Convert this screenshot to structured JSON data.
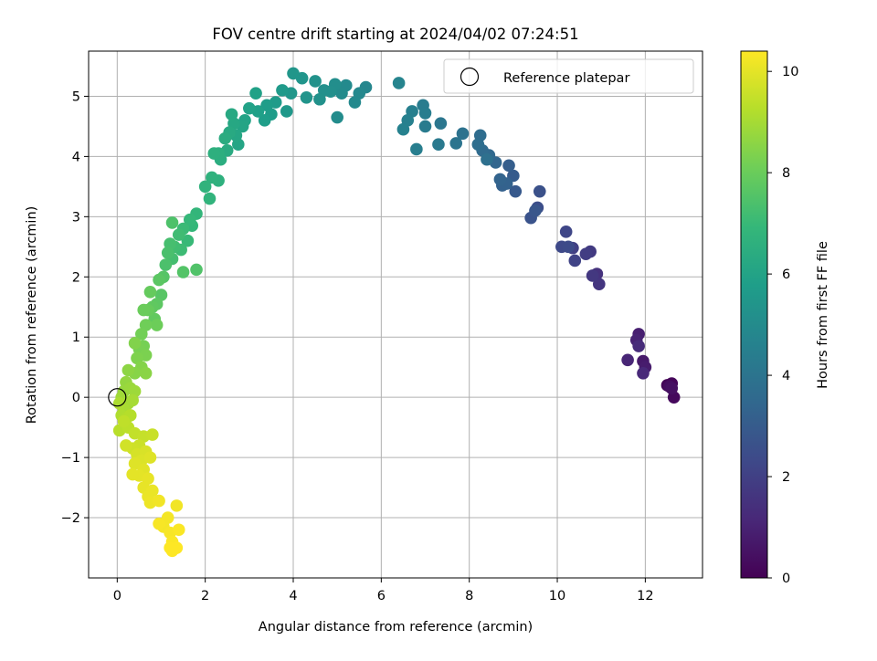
{
  "chart_data": {
    "type": "scatter",
    "title": "FOV centre drift starting at 2024/04/02 07:24:51",
    "xlabel": "Angular distance from reference (arcmin)",
    "ylabel": "Rotation from reference (arcmin)",
    "xlim": [
      -0.65,
      13.3
    ],
    "ylim": [
      -3.0,
      5.75
    ],
    "xticks": [
      0,
      2,
      4,
      6,
      8,
      10,
      12
    ],
    "yticks": [
      -2,
      -1,
      0,
      1,
      2,
      3,
      4,
      5
    ],
    "grid": true,
    "colorbar": {
      "label": "Hours from first FF file",
      "min": 0,
      "max": 10.4,
      "ticks": [
        0,
        2,
        4,
        6,
        8,
        10
      ],
      "colormap": [
        "#440154",
        "#482878",
        "#3e4989",
        "#31688e",
        "#26828e",
        "#1f9e89",
        "#35b779",
        "#6ece58",
        "#b5de2b",
        "#fde725"
      ]
    },
    "legend": {
      "position": "upper right",
      "entries": [
        "Reference platepar"
      ]
    },
    "reference_point": {
      "x": 0,
      "y": 0
    },
    "series": [
      {
        "points": [
          [
            12.5,
            0.2,
            0.1
          ],
          [
            12.6,
            0.23,
            0.15
          ],
          [
            12.65,
            0.0,
            0.25
          ],
          [
            12.55,
            0.18,
            0.35
          ],
          [
            12.6,
            0.15,
            0.45
          ],
          [
            11.95,
            0.6,
            0.7
          ],
          [
            12.0,
            0.5,
            0.8
          ],
          [
            11.85,
            1.05,
            0.9
          ],
          [
            11.8,
            0.95,
            1.0
          ],
          [
            11.6,
            0.62,
            1.1
          ],
          [
            11.95,
            0.4,
            1.2
          ],
          [
            11.85,
            0.85,
            1.3
          ],
          [
            10.9,
            2.05,
            1.5
          ],
          [
            10.95,
            1.88,
            1.6
          ],
          [
            10.8,
            2.02,
            1.7
          ],
          [
            10.75,
            2.42,
            1.8
          ],
          [
            10.65,
            2.38,
            1.9
          ],
          [
            10.35,
            2.48,
            2.0
          ],
          [
            10.4,
            2.27,
            2.1
          ],
          [
            10.2,
            2.75,
            2.2
          ],
          [
            10.1,
            2.5,
            2.3
          ],
          [
            10.25,
            2.5,
            2.4
          ],
          [
            9.55,
            3.15,
            2.5
          ],
          [
            9.6,
            3.42,
            2.6
          ],
          [
            9.4,
            2.98,
            2.7
          ],
          [
            9.5,
            3.1,
            2.8
          ],
          [
            9.05,
            3.42,
            2.9
          ],
          [
            9.0,
            3.68,
            3.0
          ],
          [
            8.9,
            3.85,
            3.1
          ],
          [
            8.75,
            3.52,
            3.2
          ],
          [
            8.85,
            3.55,
            3.25
          ],
          [
            8.7,
            3.62,
            3.3
          ],
          [
            8.6,
            3.9,
            3.4
          ],
          [
            8.45,
            4.02,
            3.5
          ],
          [
            8.3,
            4.1,
            3.6
          ],
          [
            8.25,
            4.35,
            3.7
          ],
          [
            8.2,
            4.2,
            3.75
          ],
          [
            8.4,
            3.95,
            3.8
          ],
          [
            7.85,
            4.38,
            3.9
          ],
          [
            7.7,
            4.22,
            4.0
          ],
          [
            7.35,
            4.55,
            4.1
          ],
          [
            7.3,
            4.2,
            4.2
          ],
          [
            7.0,
            4.5,
            4.3
          ],
          [
            6.95,
            4.85,
            4.35
          ],
          [
            7.0,
            4.72,
            4.4
          ],
          [
            6.8,
            4.12,
            4.45
          ],
          [
            6.7,
            4.75,
            4.5
          ],
          [
            6.6,
            4.6,
            4.55
          ],
          [
            6.5,
            4.45,
            4.6
          ],
          [
            6.4,
            5.22,
            4.7
          ],
          [
            5.65,
            5.15,
            4.8
          ],
          [
            5.5,
            5.05,
            4.85
          ],
          [
            5.4,
            4.9,
            4.9
          ],
          [
            5.2,
            5.18,
            4.95
          ],
          [
            5.1,
            5.05,
            5.0
          ],
          [
            5.0,
            4.65,
            5.05
          ],
          [
            4.95,
            5.2,
            5.1
          ],
          [
            4.85,
            5.08,
            5.15
          ],
          [
            4.7,
            5.1,
            5.2
          ],
          [
            4.6,
            4.95,
            5.25
          ],
          [
            4.5,
            5.25,
            5.3
          ],
          [
            4.3,
            4.98,
            5.35
          ],
          [
            4.2,
            5.3,
            5.4
          ],
          [
            4.0,
            5.38,
            5.45
          ],
          [
            3.95,
            5.05,
            5.5
          ],
          [
            3.85,
            4.75,
            5.55
          ],
          [
            3.75,
            5.1,
            5.6
          ],
          [
            3.6,
            4.9,
            5.65
          ],
          [
            3.5,
            4.7,
            5.7
          ],
          [
            3.4,
            4.85,
            5.75
          ],
          [
            3.35,
            4.6,
            5.8
          ],
          [
            3.2,
            4.75,
            5.85
          ],
          [
            3.15,
            5.05,
            5.9
          ],
          [
            3.0,
            4.8,
            5.95
          ],
          [
            2.9,
            4.6,
            6.0
          ],
          [
            2.85,
            4.5,
            6.05
          ],
          [
            2.75,
            4.2,
            6.1
          ],
          [
            2.7,
            4.35,
            6.15
          ],
          [
            2.65,
            4.55,
            6.2
          ],
          [
            2.6,
            4.7,
            6.25
          ],
          [
            2.55,
            4.4,
            6.3
          ],
          [
            2.5,
            4.1,
            6.35
          ],
          [
            2.45,
            4.3,
            6.4
          ],
          [
            2.35,
            3.95,
            6.45
          ],
          [
            2.3,
            4.05,
            6.5
          ],
          [
            2.2,
            4.05,
            6.55
          ],
          [
            2.3,
            3.6,
            6.6
          ],
          [
            2.15,
            3.65,
            6.65
          ],
          [
            2.0,
            3.5,
            6.7
          ],
          [
            2.1,
            3.3,
            6.75
          ],
          [
            1.8,
            3.05,
            6.85
          ],
          [
            1.7,
            2.85,
            6.9
          ],
          [
            1.65,
            2.95,
            6.95
          ],
          [
            1.6,
            2.6,
            7.0
          ],
          [
            1.5,
            2.8,
            7.05
          ],
          [
            1.45,
            2.45,
            7.1
          ],
          [
            1.4,
            2.7,
            7.15
          ],
          [
            1.3,
            2.5,
            7.2
          ],
          [
            1.25,
            2.3,
            7.25
          ],
          [
            1.2,
            2.55,
            7.3
          ],
          [
            1.15,
            2.4,
            7.35
          ],
          [
            1.1,
            2.2,
            7.4
          ],
          [
            1.25,
            2.9,
            7.45
          ],
          [
            1.8,
            2.12,
            7.5
          ],
          [
            1.5,
            2.08,
            7.55
          ],
          [
            1.05,
            2.0,
            7.6
          ],
          [
            1.0,
            1.7,
            7.65
          ],
          [
            0.95,
            1.95,
            7.7
          ],
          [
            0.9,
            1.55,
            7.75
          ],
          [
            0.8,
            1.5,
            7.8
          ],
          [
            0.85,
            1.3,
            7.85
          ],
          [
            0.75,
            1.75,
            7.9
          ],
          [
            0.7,
            1.45,
            7.95
          ],
          [
            0.6,
            1.45,
            8.0
          ],
          [
            0.9,
            1.2,
            8.05
          ],
          [
            0.65,
            1.2,
            8.1
          ],
          [
            0.55,
            1.05,
            8.15
          ],
          [
            0.6,
            0.85,
            8.2
          ],
          [
            0.5,
            0.8,
            8.25
          ],
          [
            0.65,
            0.7,
            8.3
          ],
          [
            0.45,
            0.65,
            8.35
          ],
          [
            0.4,
            0.9,
            8.4
          ],
          [
            0.55,
            0.5,
            8.45
          ],
          [
            0.4,
            0.4,
            8.5
          ],
          [
            0.65,
            0.4,
            8.55
          ],
          [
            0.25,
            0.45,
            8.6
          ],
          [
            0.2,
            0.25,
            8.7
          ],
          [
            0.15,
            0.1,
            8.75
          ],
          [
            0.3,
            0.15,
            8.8
          ],
          [
            0.4,
            0.1,
            8.85
          ],
          [
            0.1,
            0.0,
            8.9
          ],
          [
            0.25,
            -0.1,
            8.95
          ],
          [
            0.35,
            -0.05,
            9.0
          ],
          [
            0.15,
            -0.2,
            9.05
          ],
          [
            0.05,
            -0.1,
            9.1
          ],
          [
            0.1,
            -0.3,
            9.15
          ],
          [
            0.2,
            -0.35,
            9.2
          ],
          [
            0.3,
            -0.3,
            9.25
          ],
          [
            0.05,
            -0.55,
            9.3
          ],
          [
            0.25,
            -0.5,
            9.35
          ],
          [
            0.15,
            -0.4,
            9.4
          ],
          [
            0.4,
            -0.6,
            9.45
          ],
          [
            0.6,
            -0.65,
            9.5
          ],
          [
            0.8,
            -0.62,
            9.55
          ],
          [
            0.5,
            -0.8,
            9.6
          ],
          [
            0.35,
            -0.85,
            9.65
          ],
          [
            0.2,
            -0.8,
            9.7
          ],
          [
            0.45,
            -0.95,
            9.75
          ],
          [
            0.65,
            -0.9,
            9.8
          ],
          [
            0.55,
            -1.05,
            9.85
          ],
          [
            0.75,
            -1.0,
            9.9
          ],
          [
            0.4,
            -1.1,
            9.9
          ],
          [
            0.6,
            -1.2,
            9.95
          ],
          [
            0.5,
            -1.3,
            10.0
          ],
          [
            0.35,
            -1.28,
            10.0
          ],
          [
            0.7,
            -1.35,
            10.05
          ],
          [
            0.6,
            -1.5,
            10.05
          ],
          [
            0.8,
            -1.55,
            10.1
          ],
          [
            0.7,
            -1.65,
            10.1
          ],
          [
            0.75,
            -1.75,
            10.15
          ],
          [
            0.95,
            -1.72,
            10.2
          ],
          [
            1.35,
            -1.8,
            10.2
          ],
          [
            1.15,
            -2.0,
            10.25
          ],
          [
            1.05,
            -2.15,
            10.25
          ],
          [
            0.95,
            -2.1,
            10.3
          ],
          [
            1.2,
            -2.25,
            10.3
          ],
          [
            1.25,
            -2.4,
            10.35
          ],
          [
            1.4,
            -2.2,
            10.35
          ],
          [
            1.35,
            -2.5,
            10.4
          ],
          [
            1.2,
            -2.5,
            10.4
          ],
          [
            1.25,
            -2.55,
            10.4
          ]
        ]
      }
    ]
  }
}
